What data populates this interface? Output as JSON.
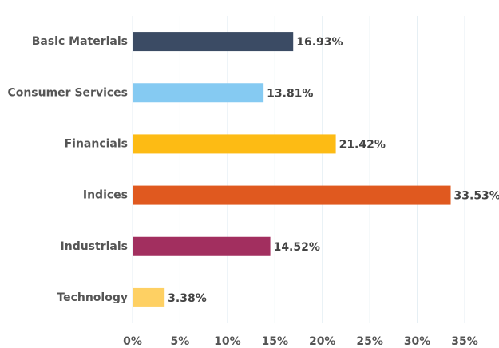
{
  "chart_data": {
    "type": "bar",
    "orientation": "horizontal",
    "categories": [
      "Basic Materials",
      "Consumer Services",
      "Financials",
      "Indices",
      "Industrials",
      "Technology"
    ],
    "values": [
      16.93,
      13.81,
      21.42,
      33.53,
      14.52,
      3.38
    ],
    "value_labels": [
      "16.93%",
      "13.81%",
      "21.42%",
      "33.53%",
      "14.52%",
      "3.38%"
    ],
    "colors": [
      "#3b4b64",
      "#85caf2",
      "#fdbb14",
      "#e0591f",
      "#a22f5f",
      "#fed063"
    ],
    "xlim": [
      0,
      35
    ],
    "xticks": [
      {
        "value": 0,
        "label": "0%"
      },
      {
        "value": 5,
        "label": "5%"
      },
      {
        "value": 10,
        "label": "10%"
      },
      {
        "value": 15,
        "label": "15%"
      },
      {
        "value": 20,
        "label": "20%"
      },
      {
        "value": 25,
        "label": "25%"
      },
      {
        "value": 30,
        "label": "30%"
      },
      {
        "value": 35,
        "label": "35%"
      }
    ],
    "grid": true
  }
}
